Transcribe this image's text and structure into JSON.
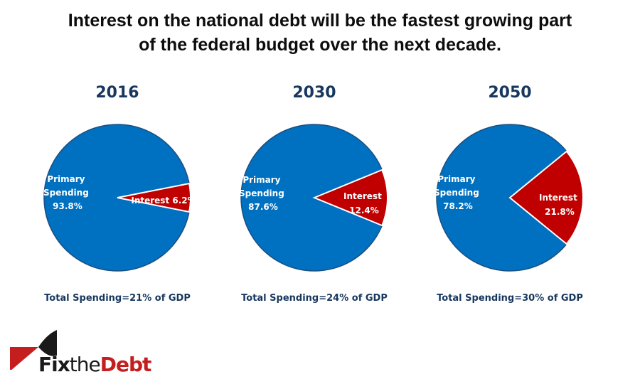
{
  "title": {
    "line1": "Interest on the national debt will be the fastest growing part",
    "line2": "of the federal budget over the next decade."
  },
  "colors": {
    "primary": "#0070c0",
    "interest": "#c00000",
    "year_text": "#17375e"
  },
  "logo": {
    "part1": "Fix",
    "part2": "the",
    "part3": "Debt"
  },
  "chart_data": [
    {
      "type": "pie",
      "title": "2016",
      "categories": [
        "Primary Spending",
        "Interest"
      ],
      "values": [
        93.8,
        6.2
      ],
      "labels": [
        [
          "Primary",
          "Spending",
          "93.8%"
        ],
        [
          "Interest 6.2%"
        ]
      ],
      "footnote": "Total Spending=21% of GDP"
    },
    {
      "type": "pie",
      "title": "2030",
      "categories": [
        "Primary Spending",
        "Interest"
      ],
      "values": [
        87.6,
        12.4
      ],
      "labels": [
        [
          "Primary",
          "Spending",
          "87.6%"
        ],
        [
          "Interest",
          "12.4%"
        ]
      ],
      "footnote": "Total Spending=24% of GDP"
    },
    {
      "type": "pie",
      "title": "2050",
      "categories": [
        "Primary Spending",
        "Interest"
      ],
      "values": [
        78.2,
        21.8
      ],
      "labels": [
        [
          "Primary",
          "Spending",
          "78.2%"
        ],
        [
          "Interest",
          "21.8%"
        ]
      ],
      "footnote": "Total Spending=30% of GDP"
    }
  ]
}
